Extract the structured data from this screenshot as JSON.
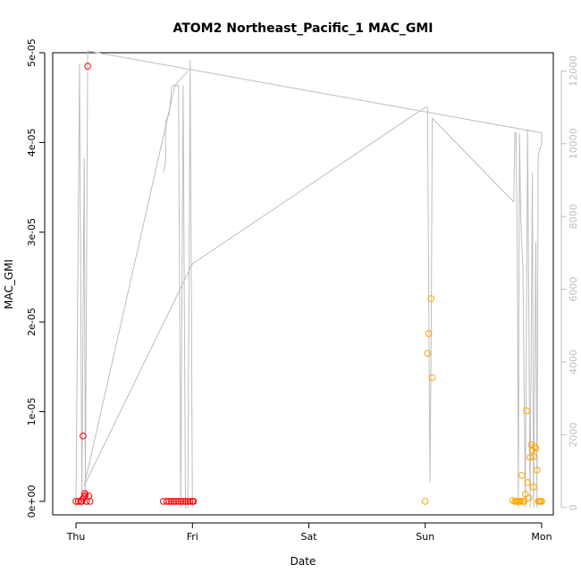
{
  "chart_data": {
    "type": "scatter",
    "title": "ATOM2 Northeast_Pacific_1 MAC_GMI",
    "xlabel": "Date",
    "ylabel": "MAC_GMI",
    "x_ticks": [
      "Thu",
      "Fri",
      "Sat",
      "Sun",
      "Mon"
    ],
    "x_range_days": [
      -0.2,
      4.1
    ],
    "ylim": [
      -1.5e-06,
      5e-05
    ],
    "y_ticks": [
      "0e+00",
      "1e-05",
      "2e-05",
      "3e-05",
      "4e-05",
      "5e-05"
    ],
    "y_tick_values": [
      0,
      1e-05,
      2e-05,
      3e-05,
      4e-05,
      5e-05
    ],
    "y2_ticks": [
      "0",
      "2000",
      "4000",
      "6000",
      "8000",
      "10000",
      "12000"
    ],
    "y2_tick_values": [
      0,
      2000,
      4000,
      6000,
      8000,
      10000,
      12000
    ],
    "y2lim": [
      -200,
      12500
    ],
    "grid": false,
    "colors": {
      "early": "#ff0000",
      "late": "#ffa500",
      "secondary_line": "#bebebe"
    },
    "series": [
      {
        "marker": "circle-open",
        "color": "#ff0000",
        "points": [
          [
            0.0,
            0.0
          ],
          [
            0.02,
            0.0
          ],
          [
            0.04,
            0.0
          ],
          [
            0.05,
            0.0
          ],
          [
            0.06,
            7.3e-06
          ],
          [
            0.06,
            3e-07
          ],
          [
            0.07,
            5e-07
          ],
          [
            0.075,
            9e-07
          ],
          [
            0.08,
            7e-07
          ],
          [
            0.09,
            0.0
          ],
          [
            0.1,
            4.85e-05
          ],
          [
            0.11,
            6e-07
          ],
          [
            0.12,
            0.0
          ],
          [
            0.75,
            0.0
          ],
          [
            0.78,
            0.0
          ],
          [
            0.8,
            0.0
          ],
          [
            0.82,
            0.0
          ],
          [
            0.84,
            0.0
          ],
          [
            0.86,
            0.0
          ],
          [
            0.88,
            0.0
          ],
          [
            0.9,
            0.0
          ],
          [
            0.92,
            0.0
          ],
          [
            0.94,
            0.0
          ],
          [
            0.96,
            0.0
          ],
          [
            0.98,
            0.0
          ],
          [
            1.0,
            0.0
          ],
          [
            1.01,
            0.0
          ]
        ]
      },
      {
        "marker": "circle-open",
        "color": "#ffa500",
        "points": [
          [
            3.0,
            0.0
          ],
          [
            3.02,
            1.65e-05
          ],
          [
            3.03,
            1.87e-05
          ],
          [
            3.05,
            2.26e-05
          ],
          [
            3.06,
            1.38e-05
          ],
          [
            3.75,
            1e-07
          ],
          [
            3.77,
            0.0
          ],
          [
            3.78,
            0.0
          ],
          [
            3.79,
            0.0
          ],
          [
            3.8,
            0.0
          ],
          [
            3.81,
            0.0
          ],
          [
            3.82,
            0.0
          ],
          [
            3.83,
            2.9e-06
          ],
          [
            3.84,
            0.0
          ],
          [
            3.85,
            0.0
          ],
          [
            3.86,
            8e-07
          ],
          [
            3.87,
            1.01e-05
          ],
          [
            3.88,
            2.1e-06
          ],
          [
            3.89,
            4e-07
          ],
          [
            3.9,
            4.9e-06
          ],
          [
            3.91,
            6.3e-06
          ],
          [
            3.92,
            5.7e-06
          ],
          [
            3.93,
            5e-06
          ],
          [
            3.93,
            1.6e-06
          ],
          [
            3.94,
            6.1e-06
          ],
          [
            3.95,
            5.9e-06
          ],
          [
            3.96,
            3.5e-06
          ],
          [
            3.97,
            0.0
          ],
          [
            3.98,
            0.0
          ],
          [
            3.99,
            0.0
          ],
          [
            4.0,
            0.0
          ]
        ]
      },
      {
        "type": "line",
        "axis": "right",
        "color": "#bebebe",
        "points": [
          [
            0.0,
            0
          ],
          [
            0.03,
            12200
          ],
          [
            0.05,
            200
          ],
          [
            0.07,
            9600
          ],
          [
            0.08,
            200
          ],
          [
            0.1,
            12550
          ],
          [
            4.0,
            10300
          ],
          [
            4.0,
            10000
          ],
          [
            3.97,
            9700
          ],
          [
            3.96,
            0
          ],
          [
            3.95,
            7300
          ],
          [
            3.93,
            0
          ],
          [
            3.92,
            9200
          ],
          [
            3.9,
            0
          ],
          [
            3.88,
            10400
          ],
          [
            3.86,
            0
          ],
          [
            3.84,
            6500
          ],
          [
            3.82,
            8000
          ],
          [
            3.81,
            10300
          ],
          [
            3.8,
            0
          ],
          [
            3.79,
            7300
          ],
          [
            3.78,
            10300
          ],
          [
            3.77,
            10300
          ],
          [
            3.76,
            8400
          ],
          [
            3.06,
            10700
          ],
          [
            3.05,
            4300
          ],
          [
            3.04,
            700
          ],
          [
            3.02,
            11000
          ],
          [
            3.0,
            11000
          ],
          [
            1.0,
            6700
          ],
          [
            0.07,
            600
          ],
          [
            0.85,
            11600
          ],
          [
            0.96,
            12000
          ]
        ]
      },
      {
        "type": "line",
        "axis": "right",
        "color": "#bebebe",
        "points": [
          [
            0.75,
            9200
          ],
          [
            0.77,
            9500
          ],
          [
            0.77,
            10600
          ],
          [
            0.78,
            10700
          ],
          [
            0.8,
            10800
          ],
          [
            0.82,
            11500
          ],
          [
            0.83,
            11600
          ],
          [
            0.85,
            11600
          ],
          [
            0.86,
            11600
          ],
          [
            0.88,
            11600
          ],
          [
            0.9,
            0
          ],
          [
            0.92,
            11600
          ],
          [
            0.94,
            0
          ],
          [
            0.96,
            0
          ],
          [
            0.98,
            12300
          ],
          [
            1.0,
            0
          ]
        ]
      }
    ]
  }
}
